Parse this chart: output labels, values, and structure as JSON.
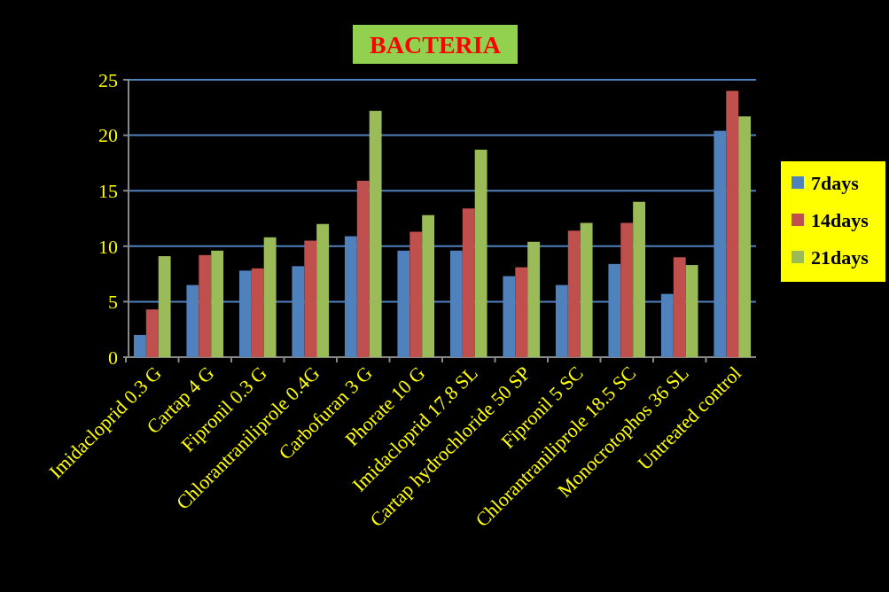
{
  "chart_data": {
    "type": "bar",
    "title": "BACTERIA",
    "categories": [
      "Imidacloprid 0.3 G",
      "Cartap 4 G",
      "Fipronil 0.3 G",
      "Chlorantraniliprole 0.4G",
      "Carbofuran 3 G",
      "Phorate 10 G",
      "Imidacloprid 17.8 SL",
      "Cartap hydrochloride 50 SP",
      "Fipronil 5 SC",
      "Chlorantraniliprole 18.5 SC",
      "Monocrotophos 36 SL",
      "Untreated control"
    ],
    "series": [
      {
        "name": "7days",
        "color": "#4f81bd",
        "values": [
          2.0,
          6.5,
          7.8,
          8.2,
          10.9,
          9.6,
          9.6,
          7.3,
          6.5,
          8.4,
          5.7,
          20.4
        ]
      },
      {
        "name": "14days",
        "color": "#c0504d",
        "values": [
          4.3,
          9.2,
          8.0,
          10.5,
          15.9,
          11.3,
          13.4,
          8.1,
          11.4,
          12.1,
          9.0,
          24.0
        ]
      },
      {
        "name": "21days",
        "color": "#9bbb59",
        "values": [
          9.1,
          9.6,
          10.8,
          12.0,
          22.2,
          12.8,
          18.7,
          10.4,
          12.1,
          14.0,
          8.3,
          21.7
        ]
      }
    ],
    "ylim": [
      0,
      25
    ],
    "yticks": [
      0,
      5,
      10,
      15,
      20,
      25
    ],
    "grid": "y",
    "legend": "right"
  }
}
